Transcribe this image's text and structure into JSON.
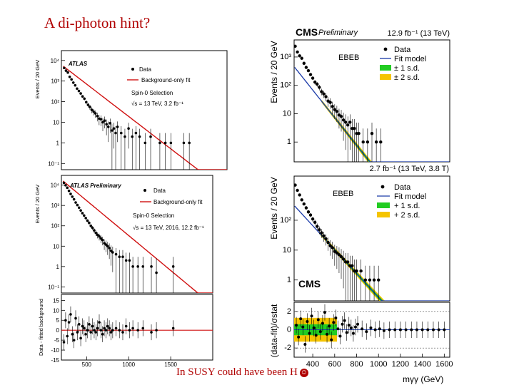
{
  "slide": {
    "title": "A di-photon hint?",
    "caption": "In SUSY could have been H",
    "caption_icon": "smiley-icon"
  },
  "chart_data": [
    {
      "id": "atlas-2015",
      "type": "scatter",
      "experiment": "ATLAS",
      "title": "ATLAS",
      "ylabel": "Events / 20 GeV",
      "yscale": "log",
      "ylim": [
        0.05,
        30000
      ],
      "xlim": [
        200,
        2000
      ],
      "yticks": [
        {
          "v": 0.1,
          "l": "10⁻¹"
        },
        {
          "v": 1,
          "l": "1"
        },
        {
          "v": 10,
          "l": "10"
        },
        {
          "v": 100,
          "l": "10²"
        },
        {
          "v": 1000,
          "l": "10³"
        },
        {
          "v": 10000,
          "l": "10⁴"
        }
      ],
      "legend": [
        "Data",
        "Background-only fit"
      ],
      "annotations": [
        "Spin-0 Selection",
        "√s = 13 TeV, 3.2 fb⁻¹"
      ],
      "fit": {
        "amplitude": 30000,
        "slope": 0.0079
      },
      "series": [
        {
          "name": "Data",
          "x": [
            230,
            250,
            270,
            290,
            310,
            330,
            350,
            370,
            390,
            410,
            430,
            450,
            470,
            490,
            510,
            530,
            550,
            570,
            590,
            610,
            630,
            650,
            670,
            690,
            710,
            730,
            750,
            770,
            790,
            810,
            850,
            890,
            930,
            970,
            1010,
            1050,
            1110,
            1170,
            1270,
            1330,
            1390,
            1530,
            1590
          ],
          "y": [
            4300,
            3200,
            2600,
            1600,
            1200,
            840,
            620,
            430,
            330,
            250,
            180,
            140,
            95,
            70,
            55,
            40,
            33,
            27,
            20,
            15,
            14,
            10,
            12,
            8,
            6,
            9,
            4,
            5,
            3,
            6,
            3,
            2,
            5,
            2,
            3,
            2,
            1,
            2,
            1,
            1,
            1,
            1,
            1
          ]
        }
      ]
    },
    {
      "id": "atlas-2016",
      "type": "scatter",
      "experiment": "ATLAS",
      "title": "ATLAS Preliminary",
      "ylabel": "Events / 20 GeV",
      "yscale": "log",
      "ylim": [
        0.05,
        30000
      ],
      "xlim": [
        200,
        2000
      ],
      "yticks": [
        {
          "v": 0.1,
          "l": "10⁻¹"
        },
        {
          "v": 1,
          "l": "1"
        },
        {
          "v": 10,
          "l": "10"
        },
        {
          "v": 100,
          "l": "10²"
        },
        {
          "v": 1000,
          "l": "10³"
        },
        {
          "v": 10000,
          "l": "10⁴"
        }
      ],
      "legend": [
        "Data",
        "Background-only fit"
      ],
      "annotations": [
        "Spin-0 Selection",
        "√s = 13 TeV, 2016, 12.2 fb⁻¹"
      ],
      "fit": {
        "amplitude": 90000,
        "slope": 0.0079
      },
      "series": [
        {
          "name": "Data",
          "x": [
            230,
            250,
            270,
            290,
            310,
            330,
            350,
            370,
            390,
            410,
            430,
            450,
            470,
            490,
            510,
            530,
            550,
            570,
            590,
            610,
            630,
            650,
            670,
            690,
            710,
            730,
            750,
            770,
            790,
            810,
            850,
            890,
            930,
            970,
            1010,
            1050,
            1110,
            1170,
            1270,
            1330,
            1530
          ],
          "y": [
            13000,
            9800,
            7400,
            5200,
            3700,
            2700,
            2000,
            1400,
            1050,
            780,
            570,
            420,
            320,
            240,
            180,
            140,
            100,
            80,
            60,
            45,
            36,
            30,
            24,
            20,
            14,
            12,
            10,
            8,
            6,
            5,
            4,
            3,
            3,
            2,
            2,
            1,
            1,
            1,
            1,
            0.5,
            1
          ]
        }
      ]
    },
    {
      "id": "atlas-residual",
      "type": "scatter",
      "experiment": "ATLAS",
      "ylabel": "Data - fitted background",
      "ylim": [
        -15,
        18
      ],
      "xlim": [
        200,
        2000
      ],
      "yticks": [
        {
          "v": -15,
          "l": "-15"
        },
        {
          "v": -10,
          "l": "-10"
        },
        {
          "v": -5,
          "l": "-5"
        },
        {
          "v": 0,
          "l": "0"
        },
        {
          "v": 5,
          "l": "5"
        },
        {
          "v": 10,
          "l": "10"
        },
        {
          "v": 15,
          "l": "15"
        }
      ],
      "xticks": [
        {
          "v": 500,
          "l": "500"
        },
        {
          "v": 1000,
          "l": "1000"
        },
        {
          "v": 1500,
          "l": "1500"
        }
      ],
      "series": [
        {
          "name": "Data",
          "x": [
            230,
            250,
            270,
            290,
            310,
            330,
            350,
            370,
            390,
            410,
            430,
            450,
            470,
            490,
            510,
            530,
            550,
            570,
            590,
            610,
            630,
            650,
            670,
            690,
            710,
            730,
            750,
            770,
            790,
            810,
            850,
            890,
            930,
            970,
            1010,
            1050,
            1110,
            1170,
            1270,
            1330,
            1530
          ],
          "y": [
            -6,
            5,
            -3,
            4,
            8,
            -2,
            -5,
            6,
            -1,
            3,
            -4,
            2,
            1,
            -2,
            0,
            3,
            -1,
            2,
            0,
            -1,
            1,
            4,
            0,
            -2,
            1,
            0,
            2,
            1,
            -1,
            0,
            1,
            0,
            -1,
            2,
            0,
            1,
            0,
            1,
            -1,
            0,
            1
          ]
        }
      ]
    },
    {
      "id": "cms-2015",
      "type": "scatter",
      "experiment": "CMS",
      "title": "CMS",
      "subtitle": "Preliminary",
      "lumi": "12.9 fb⁻¹ (13 TeV)",
      "lumi2": "2.7 fb⁻¹ (13 TeV, 3.8 T)",
      "category": "EBEB",
      "ylabel": "Events / 20 GeV",
      "yscale": "log",
      "ylim": [
        0.2,
        4000
      ],
      "xlim": [
        230,
        1650
      ],
      "yticks": [
        {
          "v": 1,
          "l": "1"
        },
        {
          "v": 10,
          "l": "10"
        },
        {
          "v": 100,
          "l": "10²"
        },
        {
          "v": 1000,
          "l": "10³"
        }
      ],
      "legend": [
        "Data",
        "Fit model",
        "± 1 s.d.",
        "± 2 s.d."
      ],
      "fit": {
        "amplitude": 6000,
        "slope": 0.0112
      },
      "series": [
        {
          "name": "Data",
          "x": [
            240,
            260,
            280,
            300,
            320,
            340,
            360,
            380,
            400,
            420,
            440,
            460,
            480,
            500,
            520,
            540,
            560,
            580,
            600,
            620,
            640,
            660,
            680,
            700,
            720,
            740,
            760,
            780,
            800,
            820,
            860,
            900,
            940,
            980,
            1020
          ],
          "y": [
            2400,
            1500,
            1100,
            900,
            600,
            430,
            330,
            240,
            180,
            130,
            110,
            85,
            60,
            50,
            40,
            28,
            25,
            18,
            14,
            12,
            9,
            8,
            6,
            5,
            4,
            5,
            3,
            3,
            2,
            2,
            1,
            1,
            2,
            1,
            1
          ]
        }
      ]
    },
    {
      "id": "cms-2016",
      "type": "scatter",
      "experiment": "CMS",
      "title": "CMS",
      "category": "EBEB",
      "ylabel": "Events / 20 GeV",
      "yscale": "log",
      "ylim": [
        0.2,
        3000
      ],
      "xlim": [
        230,
        1650
      ],
      "yticks": [
        {
          "v": 1,
          "l": "1"
        },
        {
          "v": 10,
          "l": "10"
        },
        {
          "v": 100,
          "l": "10²"
        }
      ],
      "legend": [
        "Data",
        "Fit model",
        "+ 1 s.d.",
        "+ 2 s.d."
      ],
      "fit": {
        "amplitude": 2600,
        "slope": 0.0092
      },
      "series": [
        {
          "name": "Data",
          "x": [
            240,
            260,
            280,
            300,
            320,
            340,
            360,
            380,
            400,
            420,
            440,
            460,
            480,
            500,
            520,
            540,
            560,
            580,
            600,
            620,
            640,
            660,
            680,
            700,
            720,
            740,
            760,
            780,
            800,
            840,
            880,
            920,
            960,
            1000
          ],
          "y": [
            1500,
            1000,
            700,
            480,
            350,
            260,
            190,
            150,
            110,
            85,
            62,
            48,
            38,
            30,
            24,
            18,
            14,
            12,
            9,
            8,
            7,
            6,
            5,
            4,
            4,
            3,
            3,
            2,
            2,
            2,
            1,
            1,
            1,
            1
          ]
        }
      ]
    },
    {
      "id": "cms-pull",
      "type": "scatter",
      "experiment": "CMS",
      "ylabel": "(data-fit)/σstat",
      "xlabel": "mγγ (GeV)",
      "ylim": [
        -3,
        3
      ],
      "xlim": [
        230,
        1650
      ],
      "yticks": [
        {
          "v": -2,
          "l": "-2"
        },
        {
          "v": 0,
          "l": "0"
        },
        {
          "v": 2,
          "l": "2"
        }
      ],
      "xticks": [
        {
          "v": 400,
          "l": "400"
        },
        {
          "v": 600,
          "l": "600"
        },
        {
          "v": 800,
          "l": "800"
        },
        {
          "v": 1000,
          "l": "1000"
        },
        {
          "v": 1200,
          "l": "1200"
        },
        {
          "v": 1400,
          "l": "1400"
        },
        {
          "v": 1600,
          "l": "1600"
        }
      ],
      "series": [
        {
          "name": "Data",
          "x": [
            250,
            270,
            290,
            310,
            330,
            350,
            370,
            390,
            410,
            430,
            450,
            470,
            490,
            510,
            530,
            550,
            570,
            590,
            610,
            630,
            650,
            670,
            690,
            710,
            730,
            750,
            770,
            790,
            810,
            850,
            890,
            930,
            970,
            1010,
            1050,
            1100,
            1150,
            1200,
            1250,
            1300,
            1350,
            1400,
            1450,
            1500,
            1550,
            1600
          ],
          "y": [
            0.5,
            -0.8,
            1.2,
            0.3,
            -1.6,
            0.9,
            -0.4,
            1.5,
            0.2,
            -0.6,
            1.1,
            -0.2,
            0.7,
            1.9,
            -0.5,
            0.4,
            -1.1,
            0.8,
            1.3,
            0.1,
            -0.7,
            0.6,
            1.0,
            -0.3,
            0.5,
            0.2,
            -0.4,
            0.3,
            0.6,
            0.1,
            -0.2,
            0.2,
            0,
            0.1,
            -0.1,
            0,
            0,
            0,
            0,
            0,
            0,
            0,
            0,
            0,
            0,
            0
          ]
        }
      ]
    }
  ]
}
